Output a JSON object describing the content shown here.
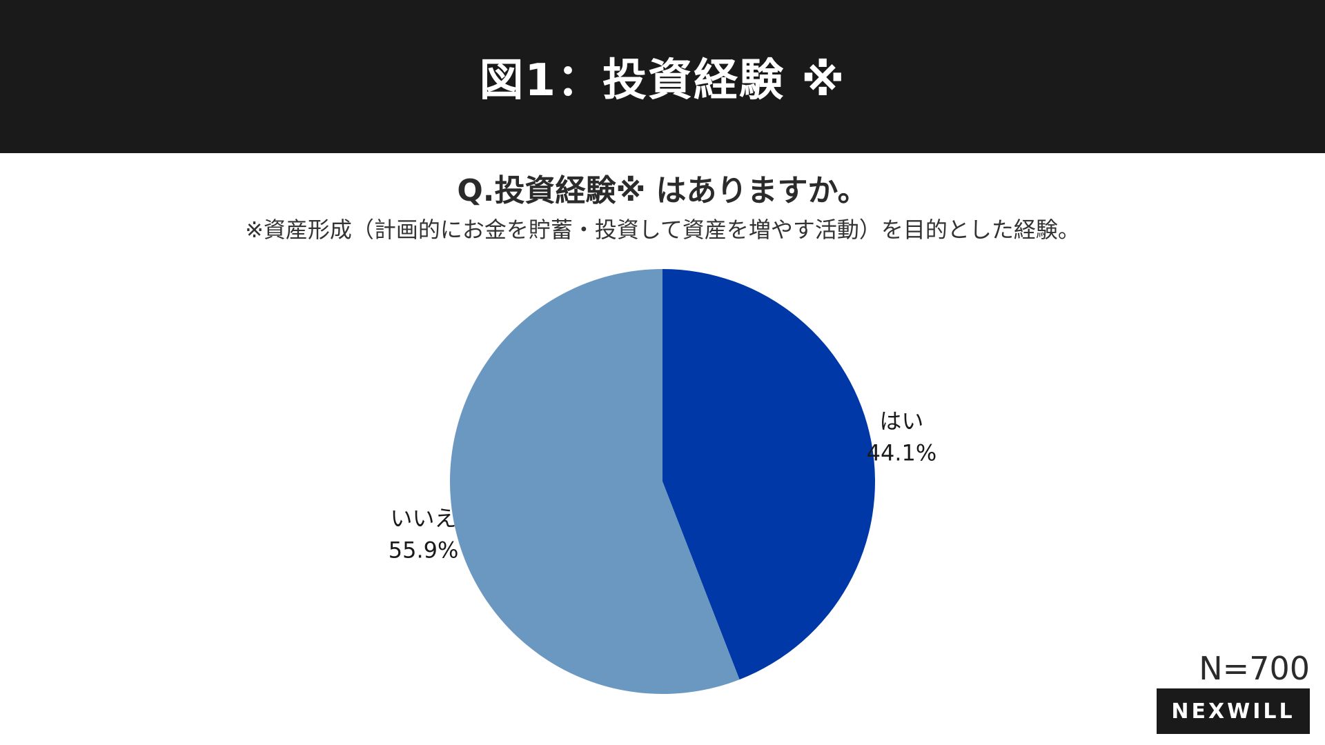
{
  "header": {
    "title": "図1：投資経験 ※"
  },
  "question": {
    "text": "Q.投資経験※ はありますか。",
    "note": "※資産形成（計画的にお金を貯蓄・投資して資産を増やす活動）を目的とした経験。"
  },
  "chart_data": {
    "type": "pie",
    "slices": [
      {
        "label": "はい",
        "value": 44.1,
        "display": "44.1%",
        "color": "#0038A8",
        "label_side": "right"
      },
      {
        "label": "いいえ",
        "value": 55.9,
        "display": "55.9%",
        "color": "#6B98C1",
        "label_side": "left"
      }
    ],
    "start": "12 o'clock",
    "direction": "clockwise"
  },
  "footer": {
    "n_label": "N=700",
    "logo": "NEXWILL"
  },
  "colors": {
    "header_bg": "#1a1a1a",
    "yes": "#0038A8",
    "no": "#6B98C1"
  }
}
